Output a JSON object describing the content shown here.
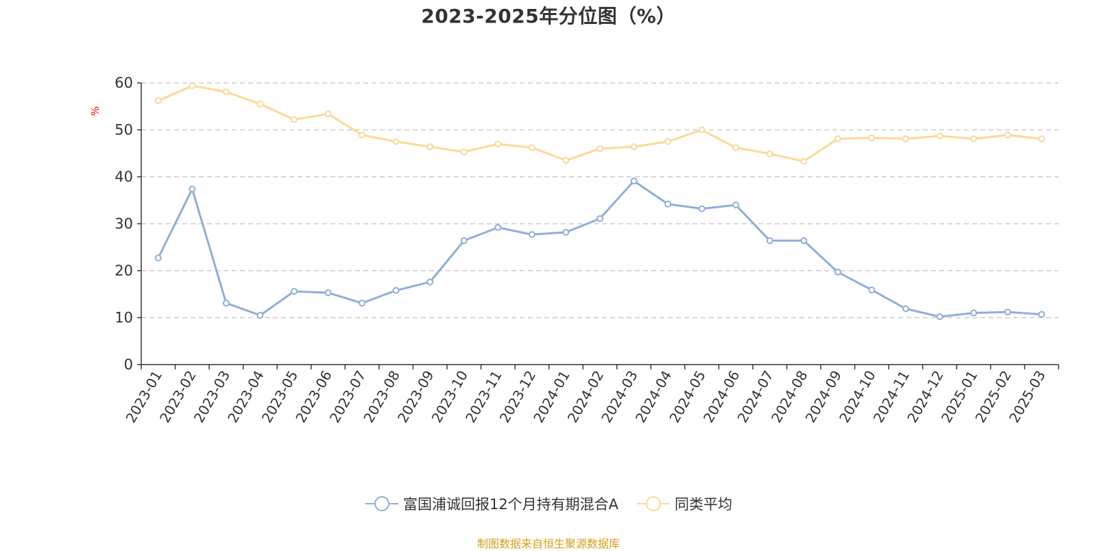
{
  "chart_data": {
    "type": "line",
    "title": "2023-2025年分位图（%）",
    "ylabel": "%",
    "xlabel": "",
    "ylim": [
      0,
      60
    ],
    "yticks": [
      0,
      10,
      20,
      30,
      40,
      50,
      60
    ],
    "grid": true,
    "legend_position": "bottom",
    "categories": [
      "2023-01",
      "2023-02",
      "2023-03",
      "2023-04",
      "2023-05",
      "2023-06",
      "2023-07",
      "2023-08",
      "2023-09",
      "2023-10",
      "2023-11",
      "2023-12",
      "2024-01",
      "2024-02",
      "2024-03",
      "2024-04",
      "2024-05",
      "2024-06",
      "2024-07",
      "2024-08",
      "2024-09",
      "2024-10",
      "2024-11",
      "2024-12",
      "2025-01",
      "2025-02",
      "2025-03"
    ],
    "series": [
      {
        "name": "富国浦诚回报12个月持有期混合A",
        "color": "#8eaed9",
        "values": [
          22.7,
          37.4,
          13.1,
          10.5,
          15.6,
          15.3,
          13.1,
          15.8,
          17.6,
          26.4,
          29.2,
          27.7,
          28.2,
          31.1,
          39.1,
          34.2,
          33.2,
          34.0,
          26.4,
          26.4,
          19.7,
          15.9,
          11.9,
          10.2,
          11.0,
          11.2,
          10.7
        ]
      },
      {
        "name": "同类平均",
        "color": "#fbd997",
        "values": [
          56.2,
          59.4,
          58.1,
          55.5,
          52.2,
          53.4,
          48.9,
          47.5,
          46.4,
          45.3,
          47.0,
          46.2,
          43.5,
          46.0,
          46.4,
          47.5,
          50.0,
          46.2,
          44.9,
          43.3,
          48.1,
          48.3,
          48.1,
          48.7,
          48.1,
          48.9,
          48.1
        ]
      }
    ]
  },
  "source_note": "制图数据来自恒生聚源数据库"
}
